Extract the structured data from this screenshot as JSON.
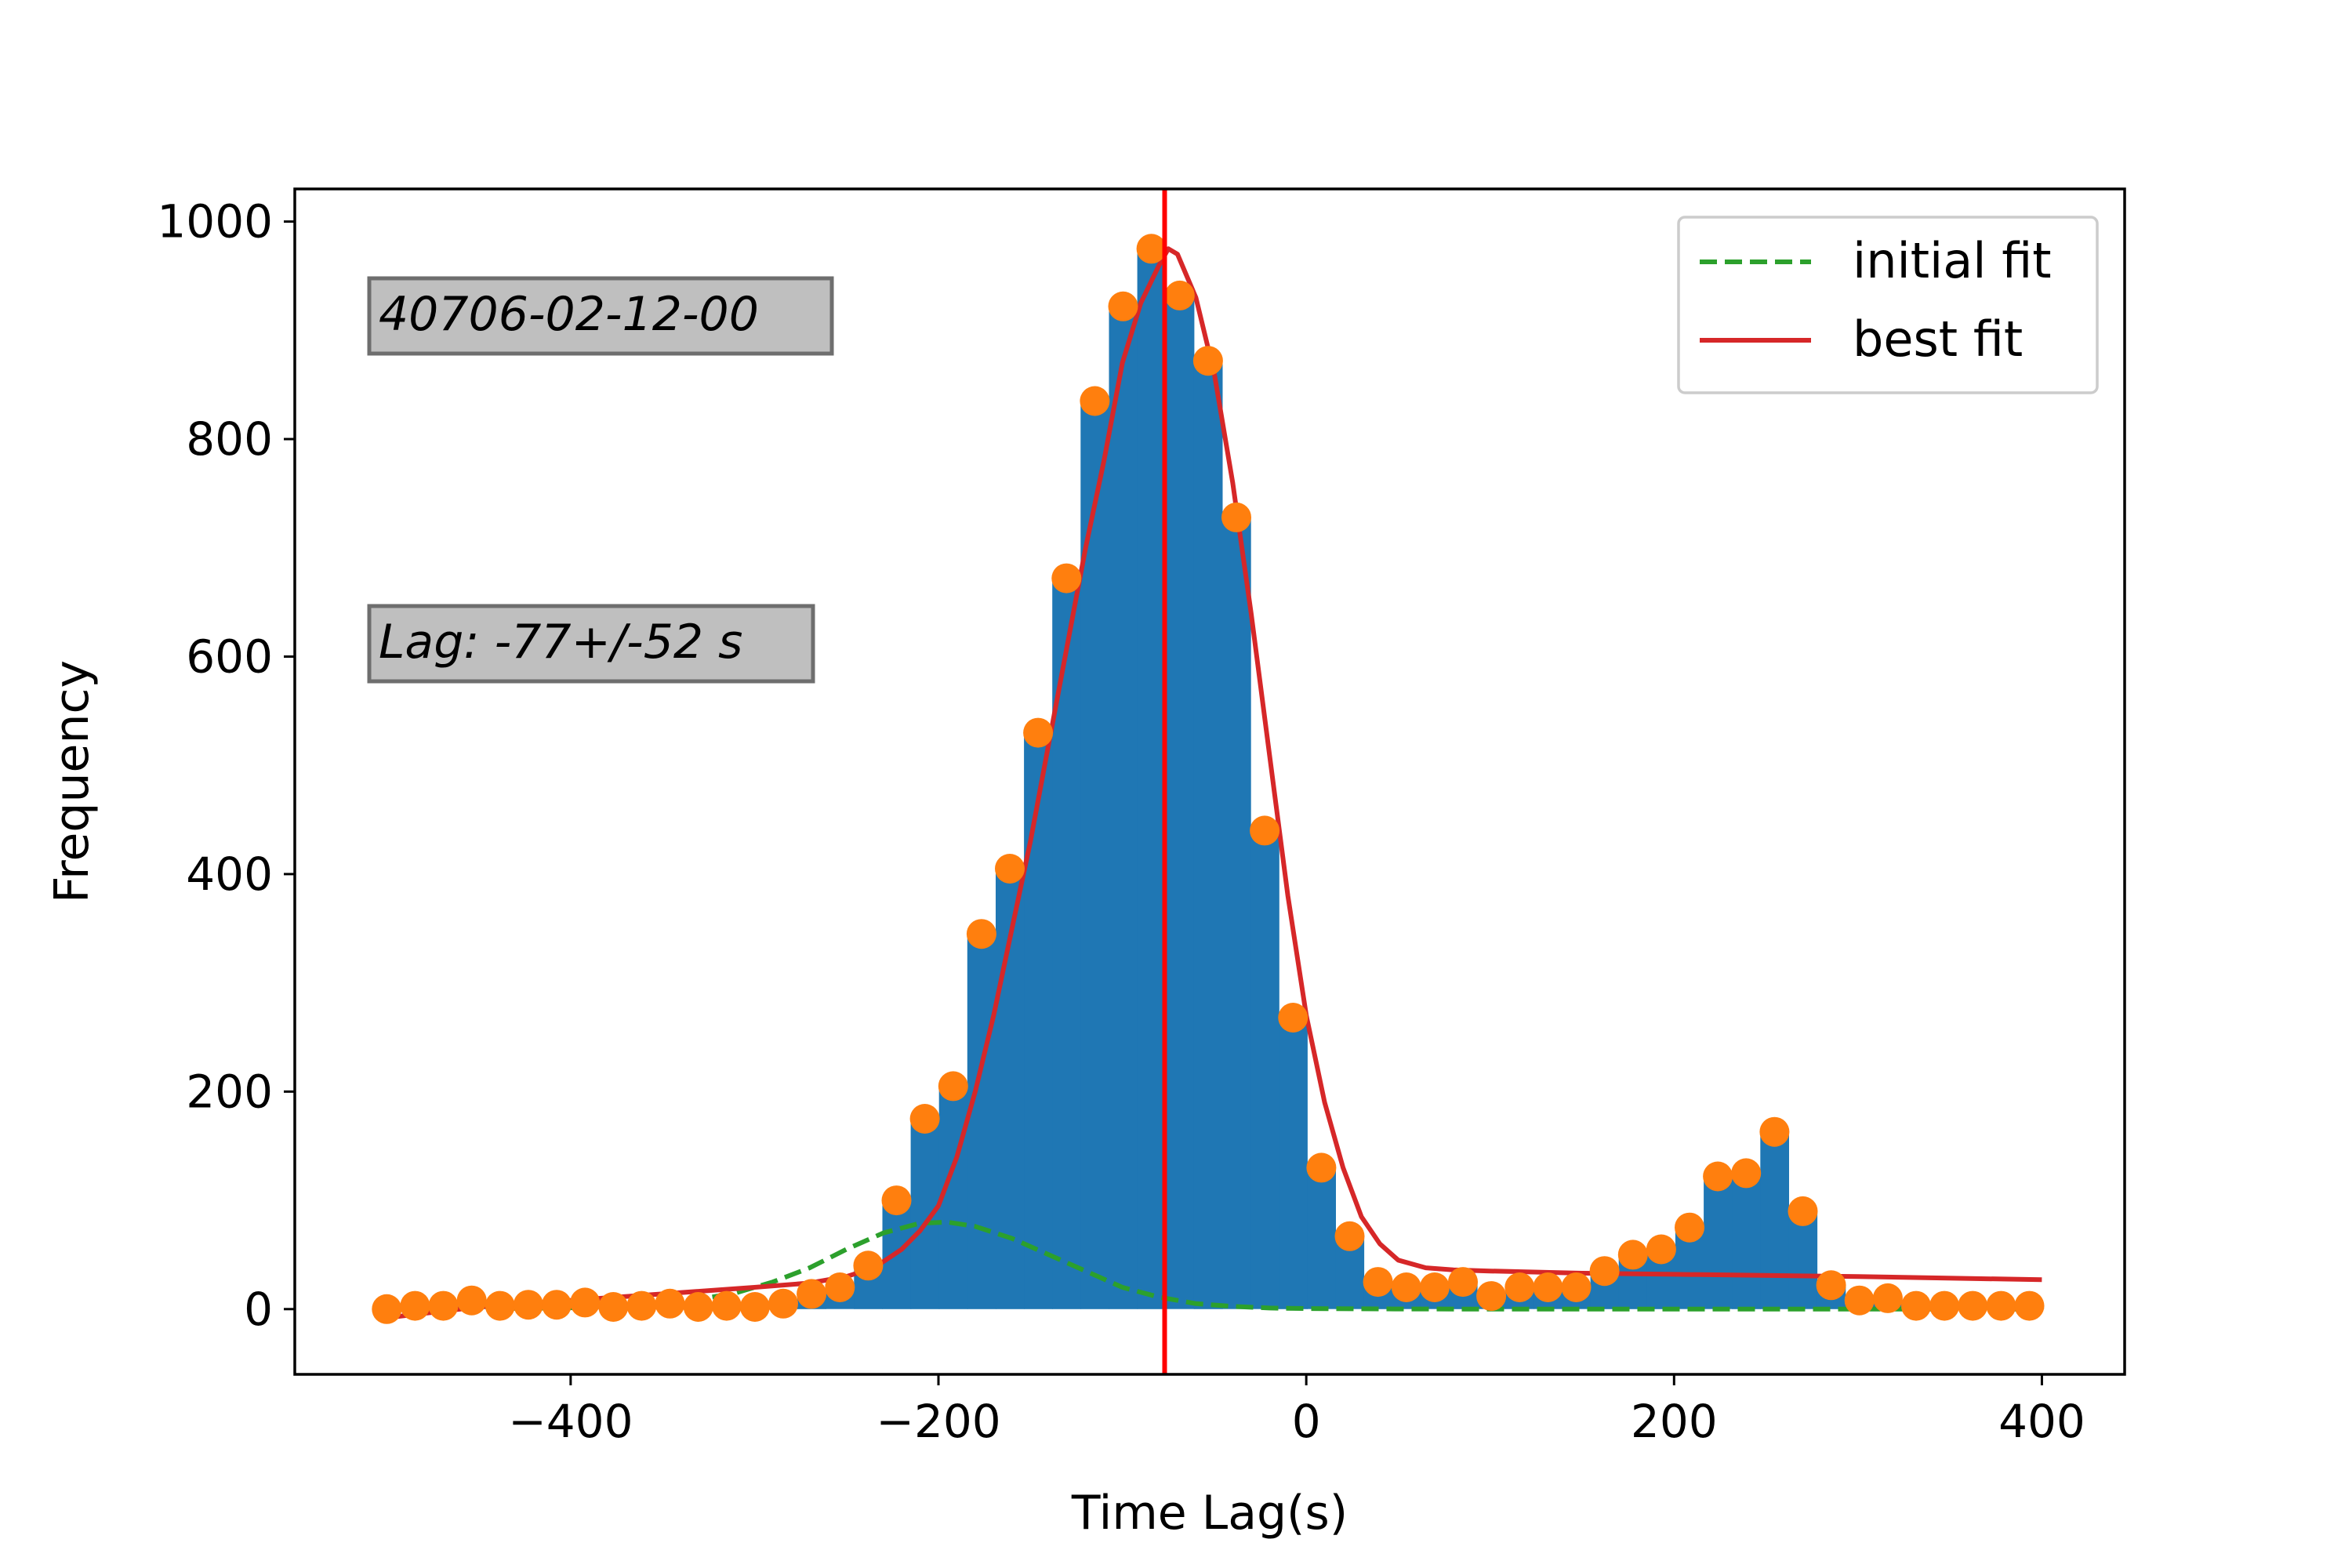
{
  "chart_data": {
    "type": "bar",
    "xlabel": "Time Lag(s)",
    "ylabel": "Frequency",
    "xlim": [
      -550,
      445
    ],
    "ylim": [
      -60,
      1030
    ],
    "xticks": [
      -400,
      -200,
      0,
      200,
      400
    ],
    "xtick_labels": [
      "−400",
      "−200",
      "0",
      "200",
      "400"
    ],
    "yticks": [
      0,
      200,
      400,
      600,
      800,
      1000
    ],
    "ytick_labels": [
      "0",
      "200",
      "400",
      "600",
      "800",
      "1000"
    ],
    "grid": false,
    "legend_position": "top-right",
    "bin_width": 15.4,
    "histogram": {
      "color": "#1f77b4",
      "x": [
        -500,
        -484.6,
        -469.2,
        -453.8,
        -438.4,
        -423,
        -407.6,
        -392.2,
        -376.8,
        -361.4,
        -346,
        -330.6,
        -315.2,
        -299.8,
        -284.4,
        -269,
        -253.6,
        -238.2,
        -222.8,
        -207.4,
        -192,
        -176.6,
        -161.2,
        -145.8,
        -130.4,
        -115,
        -99.6,
        -84.2,
        -68.8,
        -53.4,
        -38,
        -22.6,
        -7.2,
        8.2,
        23.6,
        39,
        54.4,
        69.8,
        85.2,
        100.6,
        116,
        131.4,
        146.8,
        162.2,
        177.6,
        193,
        208.4,
        223.8,
        239.2,
        254.6,
        270,
        285.4,
        300.8,
        316.2,
        331.6,
        347,
        362.4,
        377.8,
        393.2
      ],
      "values": [
        0,
        3,
        3,
        8,
        3,
        4,
        4,
        6,
        2,
        3,
        5,
        2,
        3,
        2,
        5,
        14,
        20,
        40,
        100,
        175,
        205,
        345,
        405,
        530,
        672,
        835,
        922,
        975,
        932,
        872,
        728,
        440,
        268,
        130,
        67,
        25,
        20,
        20,
        25,
        12,
        20,
        20,
        20,
        35,
        50,
        55,
        75,
        122,
        125,
        163,
        90,
        22,
        8,
        10,
        3,
        3,
        3,
        3,
        3
      ]
    },
    "series": [
      {
        "name": "initial fit",
        "type": "line",
        "style": "dashed",
        "color": "#2ca02c",
        "x": [
          -500,
          -450,
          -400,
          -350,
          -330,
          -310,
          -290,
          -270,
          -250,
          -230,
          -210,
          -195,
          -180,
          -160,
          -140,
          -120,
          -100,
          -80,
          -60,
          -40,
          -20,
          0,
          50,
          100,
          200,
          300,
          400
        ],
        "y": [
          0,
          0.3,
          1.2,
          5,
          9,
          15,
          25,
          38,
          55,
          70,
          79,
          80,
          76,
          65,
          50,
          35,
          20,
          11,
          5,
          2.5,
          1,
          0.5,
          0.1,
          0,
          0,
          0,
          0
        ]
      },
      {
        "name": "best fit",
        "type": "line",
        "style": "solid",
        "color": "#d62728",
        "x": [
          -500,
          -450,
          -400,
          -350,
          -300,
          -270,
          -250,
          -235,
          -220,
          -210,
          -200,
          -190,
          -180,
          -170,
          -160,
          -150,
          -140,
          -130,
          -120,
          -110,
          -100,
          -90,
          -80,
          -75,
          -70,
          -60,
          -50,
          -40,
          -30,
          -20,
          -10,
          0,
          10,
          20,
          30,
          40,
          50,
          65,
          80,
          100,
          150,
          200,
          300,
          400
        ],
        "y": [
          -8,
          2,
          8,
          14,
          20,
          24,
          30,
          38,
          55,
          72,
          95,
          140,
          200,
          270,
          350,
          430,
          520,
          610,
          700,
          780,
          870,
          925,
          960,
          975,
          970,
          930,
          860,
          760,
          640,
          510,
          380,
          270,
          190,
          130,
          85,
          60,
          45,
          38,
          36,
          35,
          33,
          32,
          30,
          27
        ]
      },
      {
        "name": "data points",
        "type": "scatter",
        "color": "#ff7f0e",
        "x": [
          -500,
          -484.6,
          -469.2,
          -453.8,
          -438.4,
          -423,
          -407.6,
          -392.2,
          -376.8,
          -361.4,
          -346,
          -330.6,
          -315.2,
          -299.8,
          -284.4,
          -269,
          -253.6,
          -238.2,
          -222.8,
          -207.4,
          -192,
          -176.6,
          -161.2,
          -145.8,
          -130.4,
          -115,
          -99.6,
          -84.2,
          -68.8,
          -53.4,
          -38,
          -22.6,
          -7.2,
          8.2,
          23.6,
          39,
          54.4,
          69.8,
          85.2,
          100.6,
          116,
          131.4,
          146.8,
          162.2,
          177.6,
          193,
          208.4,
          223.8,
          239.2,
          254.6,
          270,
          285.4,
          300.8,
          316.2,
          331.6,
          347,
          362.4,
          377.8,
          393.2
        ],
        "y": [
          0,
          3,
          3,
          8,
          3,
          4,
          4,
          6,
          2,
          3,
          5,
          2,
          3,
          2,
          5,
          14,
          20,
          40,
          100,
          175,
          205,
          345,
          405,
          530,
          672,
          835,
          922,
          975,
          932,
          872,
          728,
          440,
          268,
          130,
          67,
          25,
          20,
          20,
          25,
          12,
          20,
          20,
          20,
          35,
          50,
          55,
          75,
          122,
          125,
          163,
          90,
          22,
          8,
          10,
          3,
          3,
          3,
          3,
          3
        ]
      }
    ],
    "vline": {
      "x": -77,
      "color": "#ff0000"
    },
    "annotations": [
      {
        "text": "40706-02-12-00"
      },
      {
        "text": "Lag: -77+/-52 s"
      }
    ],
    "legend": [
      "initial fit",
      "best fit"
    ]
  }
}
